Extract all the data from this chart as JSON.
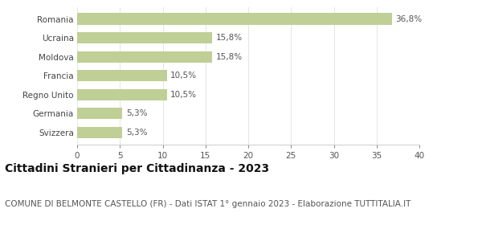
{
  "categories": [
    "Svizzera",
    "Germania",
    "Regno Unito",
    "Francia",
    "Moldova",
    "Ucraina",
    "Romania"
  ],
  "values": [
    5.3,
    5.3,
    10.5,
    10.5,
    15.8,
    15.8,
    36.8
  ],
  "labels": [
    "5,3%",
    "5,3%",
    "10,5%",
    "10,5%",
    "15,8%",
    "15,8%",
    "36,8%"
  ],
  "bar_color": "#bfcf96",
  "xlim": [
    0,
    40
  ],
  "xticks": [
    0,
    5,
    10,
    15,
    20,
    25,
    30,
    35,
    40
  ],
  "title": "Cittadini Stranieri per Cittadinanza - 2023",
  "subtitle": "COMUNE DI BELMONTE CASTELLO (FR) - Dati ISTAT 1° gennaio 2023 - Elaborazione TUTTITALIA.IT",
  "title_fontsize": 10,
  "subtitle_fontsize": 7.5,
  "label_fontsize": 7.5,
  "tick_fontsize": 7.5,
  "background_color": "#ffffff",
  "bar_height": 0.6
}
